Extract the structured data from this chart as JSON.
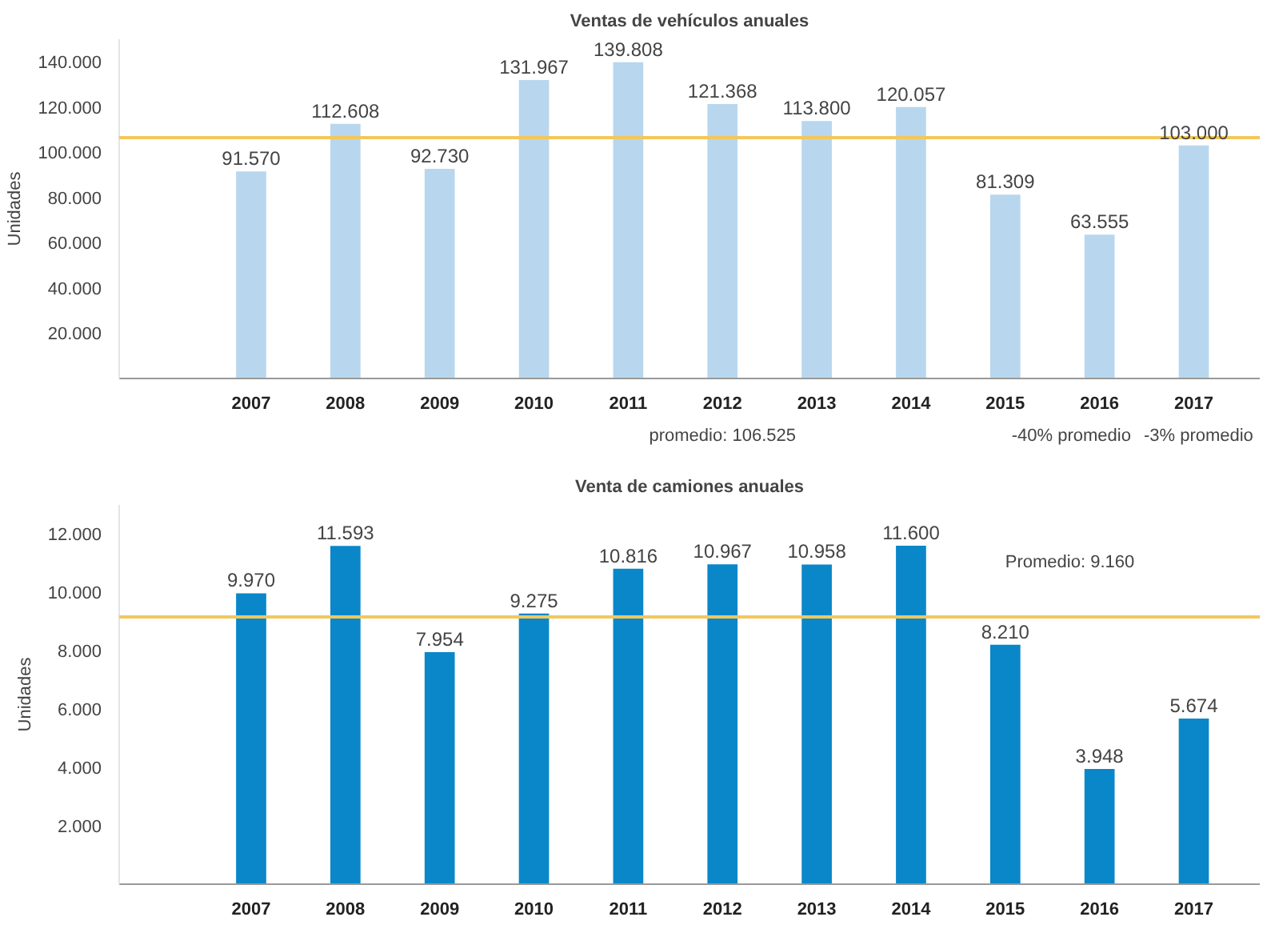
{
  "chart_data": [
    {
      "type": "bar",
      "title": "Ventas de vehículos anuales",
      "ylabel": "Unidades",
      "categories": [
        "2007",
        "2008",
        "2009",
        "2010",
        "2011",
        "2012",
        "2013",
        "2014",
        "2015",
        "2016",
        "2017"
      ],
      "values": [
        91570,
        112608,
        92730,
        131967,
        139808,
        121368,
        113800,
        120057,
        81309,
        63555,
        103000
      ],
      "color": "#b8d7ee",
      "grid": false,
      "ylim": [
        0,
        150000
      ],
      "value_labels": [
        "91.570",
        "112.608",
        "92.730",
        "131.967",
        "139.808",
        "121.368",
        "113.800",
        "120.057",
        "81.309",
        "63.555",
        "103.000"
      ],
      "yticks": [
        {
          "value": 20000,
          "label": "20.000"
        },
        {
          "value": 40000,
          "label": "40.000"
        },
        {
          "value": 60000,
          "label": "60.000"
        },
        {
          "value": 80000,
          "label": "80.000"
        },
        {
          "value": 100000,
          "label": "100.000"
        },
        {
          "value": 120000,
          "label": "120.000"
        },
        {
          "value": 140000,
          "label": "140.000"
        }
      ],
      "ref_lines": [
        {
          "axis": "y",
          "value": 106525,
          "color": "#f2c75c"
        }
      ],
      "annotations": [
        "promedio: 106.525",
        "-40% promedio",
        "-3% promedio"
      ]
    },
    {
      "type": "bar",
      "title": "Venta de camiones anuales",
      "ylabel": "Unidades",
      "categories": [
        "2007",
        "2008",
        "2009",
        "2010",
        "2011",
        "2012",
        "2013",
        "2014",
        "2015",
        "2016",
        "2017"
      ],
      "values": [
        9970,
        11593,
        7954,
        9275,
        10816,
        10967,
        10958,
        11600,
        8210,
        3948,
        5674
      ],
      "color": "#0a87c9",
      "grid": false,
      "ylim": [
        0,
        13000
      ],
      "value_labels": [
        "9.970",
        "11.593",
        "7.954",
        "9.275",
        "10.816",
        "10.967",
        "10.958",
        "11.600",
        "8.210",
        "3.948",
        "5.674"
      ],
      "yticks": [
        {
          "value": 2000,
          "label": "2.000"
        },
        {
          "value": 4000,
          "label": "4.000"
        },
        {
          "value": 6000,
          "label": "6.000"
        },
        {
          "value": 8000,
          "label": "8.000"
        },
        {
          "value": 10000,
          "label": "10.000"
        },
        {
          "value": 12000,
          "label": "12.000"
        }
      ],
      "ref_lines": [
        {
          "axis": "y",
          "value": 9160,
          "label": "Promedio: 9.160",
          "color": "#f2c75c"
        }
      ]
    }
  ]
}
